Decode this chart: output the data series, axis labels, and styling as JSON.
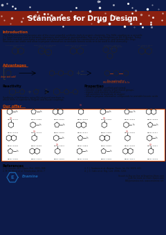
{
  "title": "Stannanes for Drug Design",
  "title_bg_color": "#8B2010",
  "background_color": "#0d1b4a",
  "body_bg_color": "#ffffff",
  "intro_heading": "Introduction",
  "intro_heading_color": "#cc4400",
  "advantages_heading": "Advantages",
  "advantages_heading_color": "#cc4400",
  "reactivity_heading": "Reactivity",
  "properties_heading": "Properties",
  "properties_items": [
    "- easily prepared, purified and stored;",
    "- tolerate a wide variety of functional groups;",
    "- require mild reaction conditions;",
    "- not sensitive to moisture or oxygen;",
    "- allow to prepare alternative compounds to unstable boronic acids"
  ],
  "our_offer_heading": "Our offer",
  "our_offer_heading_color": "#cc4400",
  "references_heading": "References",
  "footer_text1": "Search & Buy on-line at Enamine-Store.com",
  "footer_text2": "Look for more at Chem-Space.com",
  "footer_text3": "BB@enamine.net, www.enamine.net",
  "grid_border_color": "#cc4400",
  "intro_text_lines": [
    "The Stille reaction has become one of the most powerful synthetic tools in organic chemistry. The Stille coupling as a versatile",
    "C-C bond forming reaction between stannanes and halides or pseudohalides, has very few limitations on the R-groups. Today,",
    "the Stille reaction constitutes a reliable and often-used method for the construction of carbocyclic and heterocyclic rings.",
    "Stannanes are stable and allow to prepare alternatives to unstable boronic acids or to be used in click chemistry."
  ],
  "reactivity_text": [
    "Synthesis of bithiazoles using Pd-catalysed reactions in",
    "which Stille is superior to Negishi and Suzuki couplings."
  ],
  "catalog_ids_row1": [
    "BB301-21712",
    "BB301-17689",
    "BB301-45087",
    "BB301-38196",
    "BB301-14083",
    "BB301-30836",
    "BB301-30636"
  ],
  "catalog_ids_row2": [
    "BB301-42479",
    "BB301-45479",
    "BB301-45092",
    "BB301-37417",
    "BB301-14093",
    "BB301-10191",
    "BB301-37417"
  ],
  "catalog_ids_row3": [
    "BB301-41566",
    "BB301-45486",
    "BB301-14574",
    "BB301-14818",
    "BB301-49661",
    "BB301-15464",
    "BB301-10411"
  ],
  "catalog_ids_row4": [
    "BB301-10584",
    "BB301-14277",
    "BB301-45097",
    "BB301-10786",
    "BB301-14063",
    "BB301-18071",
    "BB301-30039"
  ],
  "refs_col1": [
    "1. V. Cosette, ACS Chem. Biol. 2005, 846",
    "2. M. W. Stout et al. Tetrahedron 2014, 7"
  ],
  "refs_col2": [
    "3. F. J. Sardana et al. Angew. Chem. Int. Ed. 2009, 441",
    "4. J. C. Colln et al. Org. Lett. 2006, 1261"
  ]
}
